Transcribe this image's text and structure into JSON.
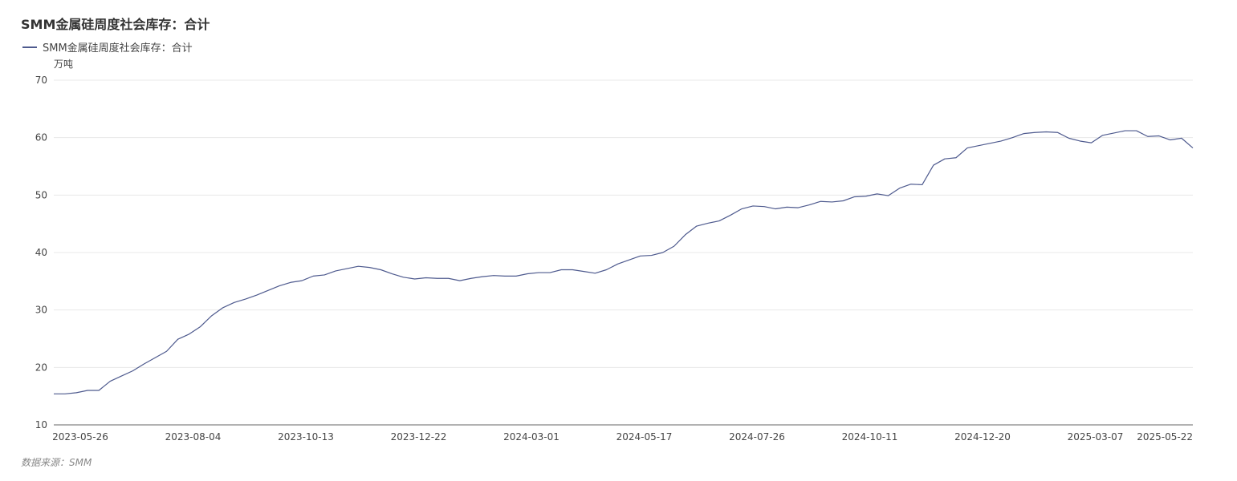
{
  "title": "SMM金属硅周度社会库存：合计",
  "source": "数据来源：SMM",
  "chart_data": {
    "type": "line",
    "title": "SMM金属硅周度社会库存：合计",
    "ylabel": "万吨",
    "xlabel": "",
    "ylim": [
      10,
      70
    ],
    "yticks": [
      10,
      20,
      30,
      40,
      50,
      60,
      70
    ],
    "grid": true,
    "legend_position": "top-left",
    "color": "#4e5a8e",
    "x_tick_labels": [
      "2023-05-26",
      "2023-08-04",
      "2023-10-13",
      "2023-12-22",
      "2024-03-01",
      "2024-05-17",
      "2024-07-26",
      "2024-10-11",
      "2024-12-20",
      "2025-03-07",
      "2025-05-22"
    ],
    "series": [
      {
        "name": "SMM金属硅周度社会库存：合计",
        "values": [
          15.4,
          15.4,
          15.6,
          16.0,
          16.0,
          17.6,
          18.5,
          19.4,
          20.6,
          21.7,
          22.8,
          24.9,
          25.8,
          27.1,
          29.0,
          30.4,
          31.3,
          31.9,
          32.6,
          33.4,
          34.2,
          34.8,
          35.1,
          35.9,
          36.1,
          36.8,
          37.2,
          37.6,
          37.4,
          37.0,
          36.3,
          35.7,
          35.4,
          35.6,
          35.5,
          35.5,
          35.1,
          35.5,
          35.8,
          36.0,
          35.9,
          35.9,
          36.3,
          36.5,
          36.5,
          37.0,
          37.0,
          36.7,
          36.4,
          37.0,
          38.0,
          38.7,
          39.4,
          39.5,
          40.0,
          41.1,
          43.1,
          44.6,
          45.1,
          45.5,
          46.5,
          47.6,
          48.1,
          48.0,
          47.6,
          47.9,
          47.8,
          48.3,
          48.9,
          48.8,
          49.0,
          49.7,
          49.8,
          50.2,
          49.9,
          51.2,
          51.9,
          51.8,
          55.2,
          56.3,
          56.5,
          58.2,
          58.6,
          59.0,
          59.4,
          60.0,
          60.7,
          60.9,
          61.0,
          60.9,
          59.9,
          59.4,
          59.1,
          60.4,
          60.8,
          61.2,
          61.2,
          60.2,
          60.3,
          59.6,
          59.9,
          58.2
        ]
      }
    ]
  }
}
